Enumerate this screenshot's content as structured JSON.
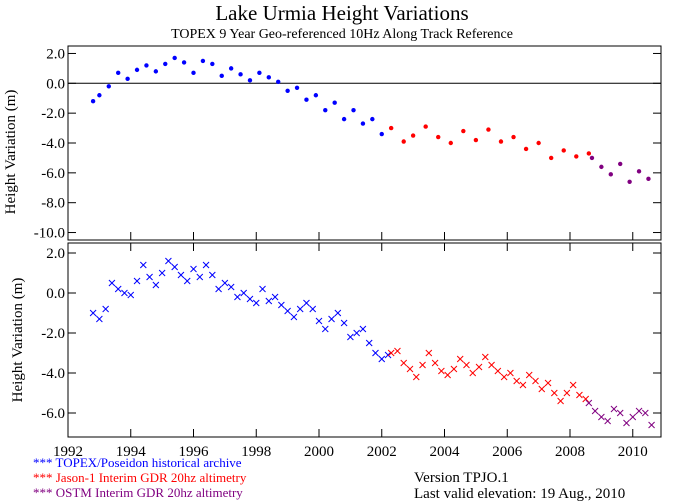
{
  "chart_data": [
    {
      "type": "scatter",
      "title": "Lake Urmia Height Variations",
      "subtitle": "TOPEX 9 Year Geo-referenced 10Hz Along Track Reference",
      "ylabel": "Height Variation (m)",
      "xlabel": "",
      "xlim": [
        1992,
        2010.9
      ],
      "ylim": [
        -10.5,
        2.5
      ],
      "yticks": [
        2.0,
        0.0,
        -2.0,
        -4.0,
        -6.0,
        -8.0,
        -10.0
      ],
      "ytick_labels": [
        "2.0",
        "0.0",
        "-2.0",
        "-4.0",
        "-6.0",
        "-8.0",
        "-10.0"
      ],
      "zero_line": true,
      "markers": "filled and open circles with error bars",
      "series": [
        {
          "color": "#0000ff",
          "x": [
            1992.8,
            1993.0,
            1993.3,
            1993.6,
            1993.9,
            1994.2,
            1994.5,
            1994.8,
            1995.1,
            1995.4,
            1995.7,
            1996.0,
            1996.3,
            1996.6,
            1996.9,
            1997.2,
            1997.5,
            1997.8,
            1998.1,
            1998.4,
            1998.7,
            1999.0,
            1999.3,
            1999.6,
            1999.9,
            2000.2,
            2000.5,
            2000.8,
            2001.1,
            2001.4,
            2001.7,
            2002.0
          ],
          "y": [
            -1.2,
            -0.8,
            -0.2,
            0.7,
            0.3,
            0.9,
            1.2,
            0.8,
            1.3,
            1.7,
            1.4,
            0.7,
            1.5,
            1.3,
            0.5,
            1.0,
            0.6,
            0.2,
            0.7,
            0.4,
            0.1,
            -0.5,
            -0.3,
            -1.1,
            -0.8,
            -1.8,
            -1.3,
            -2.4,
            -1.8,
            -2.7,
            -2.4,
            -3.4
          ]
        },
        {
          "color": "#ff0000",
          "x": [
            2002.3,
            2002.7,
            2003.0,
            2003.4,
            2003.8,
            2004.2,
            2004.6,
            2005.0,
            2005.4,
            2005.8,
            2006.2,
            2006.6,
            2007.0,
            2007.4,
            2007.8,
            2008.2,
            2008.6
          ],
          "y": [
            -3.0,
            -3.9,
            -3.5,
            -2.9,
            -3.6,
            -4.0,
            -3.2,
            -3.8,
            -3.1,
            -3.9,
            -3.6,
            -4.4,
            -4.0,
            -5.0,
            -4.5,
            -4.9,
            -4.7
          ]
        },
        {
          "color": "#800080",
          "x": [
            2008.7,
            2009.0,
            2009.3,
            2009.6,
            2009.9,
            2010.2,
            2010.5
          ],
          "y": [
            -5.0,
            -5.6,
            -6.1,
            -5.4,
            -6.6,
            -5.9,
            -6.4
          ]
        }
      ]
    },
    {
      "type": "scatter",
      "ylabel": "Height Variation (m)",
      "xlim": [
        1992,
        2010.9
      ],
      "ylim": [
        -7.2,
        2.5
      ],
      "yticks": [
        2.0,
        0.0,
        -2.0,
        -4.0,
        -6.0
      ],
      "ytick_labels": [
        "2.0",
        "0.0",
        "-2.0",
        "-4.0",
        "-6.0"
      ],
      "xticks": [
        1992,
        1994,
        1996,
        1998,
        2000,
        2002,
        2004,
        2006,
        2008,
        2010
      ],
      "xtick_labels": [
        "1992",
        "1994",
        "1996",
        "1998",
        "2000",
        "2002",
        "2004",
        "2006",
        "2008",
        "2010"
      ],
      "markers": "x",
      "series": [
        {
          "color": "#0000ff",
          "x": [
            1992.8,
            1993.0,
            1993.2,
            1993.4,
            1993.6,
            1993.8,
            1994.0,
            1994.2,
            1994.4,
            1994.6,
            1994.8,
            1995.0,
            1995.2,
            1995.4,
            1995.6,
            1995.8,
            1996.0,
            1996.2,
            1996.4,
            1996.6,
            1996.8,
            1997.0,
            1997.2,
            1997.4,
            1997.6,
            1997.8,
            1998.0,
            1998.2,
            1998.4,
            1998.6,
            1998.8,
            1999.0,
            1999.2,
            1999.4,
            1999.6,
            1999.8,
            2000.0,
            2000.2,
            2000.4,
            2000.6,
            2000.8,
            2001.0,
            2001.2,
            2001.4,
            2001.6,
            2001.8,
            2002.0,
            2002.2
          ],
          "y": [
            -1.0,
            -1.3,
            -0.8,
            0.5,
            0.2,
            0.0,
            -0.1,
            0.6,
            1.4,
            0.8,
            0.4,
            1.0,
            1.6,
            1.3,
            0.9,
            0.6,
            1.2,
            0.8,
            1.4,
            0.9,
            0.2,
            0.5,
            0.3,
            -0.2,
            0.0,
            -0.3,
            -0.5,
            0.2,
            -0.4,
            -0.2,
            -0.6,
            -0.9,
            -1.2,
            -0.8,
            -0.5,
            -0.8,
            -1.4,
            -1.8,
            -1.3,
            -1.0,
            -1.5,
            -2.2,
            -2.0,
            -1.8,
            -2.5,
            -3.0,
            -3.3,
            -3.1
          ]
        },
        {
          "color": "#ff0000",
          "x": [
            2002.3,
            2002.5,
            2002.7,
            2002.9,
            2003.1,
            2003.3,
            2003.5,
            2003.7,
            2003.9,
            2004.1,
            2004.3,
            2004.5,
            2004.7,
            2004.9,
            2005.1,
            2005.3,
            2005.5,
            2005.7,
            2005.9,
            2006.1,
            2006.3,
            2006.5,
            2006.7,
            2006.9,
            2007.1,
            2007.3,
            2007.5,
            2007.7,
            2007.9,
            2008.1,
            2008.3,
            2008.5
          ],
          "y": [
            -3.0,
            -2.9,
            -3.5,
            -3.8,
            -4.2,
            -3.6,
            -3.0,
            -3.5,
            -3.9,
            -4.1,
            -3.8,
            -3.3,
            -3.6,
            -4.0,
            -3.7,
            -3.2,
            -3.6,
            -3.9,
            -4.2,
            -4.0,
            -4.4,
            -4.6,
            -4.1,
            -4.4,
            -4.8,
            -4.5,
            -5.0,
            -5.4,
            -5.0,
            -4.6,
            -5.1,
            -5.3
          ]
        },
        {
          "color": "#800080",
          "x": [
            2008.6,
            2008.8,
            2009.0,
            2009.2,
            2009.4,
            2009.6,
            2009.8,
            2010.0,
            2010.2,
            2010.4,
            2010.6
          ],
          "y": [
            -5.5,
            -5.9,
            -6.2,
            -6.4,
            -5.8,
            -6.0,
            -6.5,
            -6.2,
            -5.9,
            -6.0,
            -6.6
          ]
        }
      ]
    }
  ],
  "legend": [
    {
      "text": "*** TOPEX/Poseidon historical archive",
      "color": "#0000ff"
    },
    {
      "text": "*** Jason-1 Interim GDR 20hz altimetry",
      "color": "#ff0000"
    },
    {
      "text": "*** OSTM  Interim GDR 20hz altimetry",
      "color": "#800080"
    }
  ],
  "footer": {
    "version": "Version TPJO.1",
    "last_valid": "Last valid elevation: 19 Aug., 2010"
  }
}
